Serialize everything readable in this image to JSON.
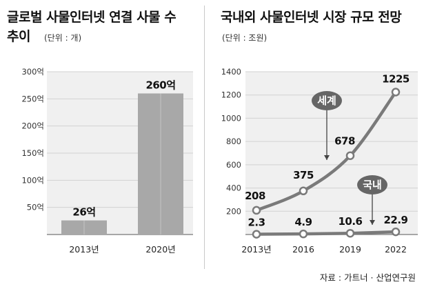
{
  "source": "자료 : 가트너 · 산업연구원",
  "chart_data": [
    {
      "type": "bar",
      "title": "글로벌 사물인터넷 연결 사물 수",
      "title_line2": "추이",
      "unit": "(단위 : 개)",
      "categories": [
        "2013년",
        "2020년"
      ],
      "values": [
        26,
        260
      ],
      "value_labels": [
        "26억",
        "260억"
      ],
      "ylim": [
        0,
        300
      ],
      "yticks": [
        50,
        100,
        150,
        200,
        250,
        300
      ],
      "ytick_labels": [
        "50억",
        "100억",
        "150억",
        "200억",
        "250억",
        "300억"
      ],
      "grid": true,
      "bar_color": "#a8a8a8"
    },
    {
      "type": "line",
      "title": "국내외 사물인터넷 시장 규모 전망",
      "unit": "(단위 : 조원)",
      "x": [
        "2013년",
        "2016",
        "2019",
        "2022"
      ],
      "ylim": [
        0,
        1400
      ],
      "yticks": [
        200,
        400,
        600,
        800,
        1000,
        1200,
        1400
      ],
      "ytick_labels": [
        "200",
        "400",
        "600",
        "800",
        "1000",
        "1200",
        "1400"
      ],
      "grid": true,
      "series": [
        {
          "name": "세계",
          "values": [
            208,
            375,
            678,
            1225
          ],
          "labels": [
            "208",
            "375",
            "678",
            "1225"
          ],
          "color": "#7a7a7a"
        },
        {
          "name": "국내",
          "values": [
            2.3,
            4.9,
            10.6,
            22.9
          ],
          "labels": [
            "2.3",
            "4.9",
            "10.6",
            "22.9"
          ],
          "color": "#7a7a7a"
        }
      ]
    }
  ]
}
